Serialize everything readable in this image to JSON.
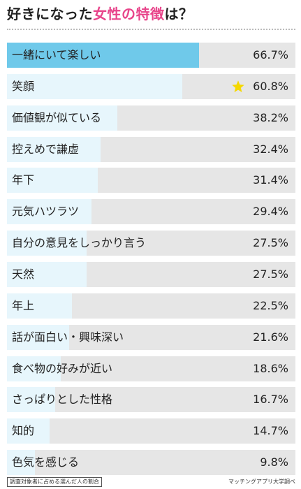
{
  "title": {
    "prefix": "好きになった",
    "highlight": "女性の特徴",
    "suffix": "は？"
  },
  "footnote": "調査対象者に占める選んだ人の割合",
  "source": "マッチングアプリ大学調べ",
  "colors": {
    "top_bar": "#6fc9ea",
    "bar": "#e7f6fc",
    "track": "#e6e6e6",
    "title_accent": "#e8458b",
    "star": "#f5d800"
  },
  "chart_data": {
    "type": "bar",
    "orientation": "horizontal",
    "title": "好きになった女性の特徴は？",
    "unit": "%",
    "xlim": [
      0,
      100
    ],
    "categories": [
      "一緒にいて楽しい",
      "笑顔",
      "価値観が似ている",
      "控えめで謙虚",
      "年下",
      "元気ハツラツ",
      "自分の意見をしっかり言う",
      "天然",
      "年上",
      "話が面白い・興味深い",
      "食べ物の好みが近い",
      "さっぱりとした性格",
      "知的",
      "色気を感じる"
    ],
    "values": [
      66.7,
      60.8,
      38.2,
      32.4,
      31.4,
      29.4,
      27.5,
      27.5,
      22.5,
      21.6,
      18.6,
      16.7,
      14.7,
      9.8
    ],
    "value_labels": [
      "66.7%",
      "60.8%",
      "38.2%",
      "32.4%",
      "31.4%",
      "29.4%",
      "27.5%",
      "27.5%",
      "22.5%",
      "21.6%",
      "18.6%",
      "16.7%",
      "14.7%",
      "9.8%"
    ],
    "highlighted_category": "一緒にいて楽しい",
    "starred_category": "笑顔",
    "grid": false,
    "legend": "none"
  }
}
